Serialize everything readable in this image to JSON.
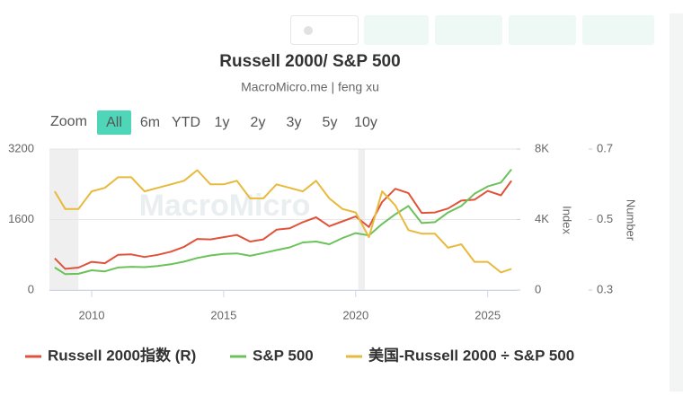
{
  "chart_data": {
    "type": "line",
    "title": "Russell 2000/ S&P 500",
    "subtitle": "MacroMicro.me | feng xu",
    "watermark": "MacroMicro",
    "range_selector": {
      "label": "Zoom",
      "buttons": [
        "All",
        "6m",
        "YTD",
        "1y",
        "2y",
        "3y",
        "5y",
        "10y"
      ],
      "selected": 0
    },
    "x": [
      2008.6,
      2009.0,
      2009.5,
      2010.0,
      2010.5,
      2011.0,
      2011.5,
      2012.0,
      2012.5,
      2013.0,
      2013.5,
      2014.0,
      2014.5,
      2015.0,
      2015.5,
      2016.0,
      2016.5,
      2017.0,
      2017.5,
      2018.0,
      2018.5,
      2019.0,
      2019.5,
      2020.0,
      2020.5,
      2021.0,
      2021.5,
      2022.0,
      2022.5,
      2023.0,
      2023.5,
      2024.0,
      2024.5,
      2025.0,
      2025.5,
      2025.9
    ],
    "xlim": [
      2008.4,
      2026.1
    ],
    "xticks": [
      2010,
      2015,
      2020,
      2025
    ],
    "bands": [
      [
        2008.4,
        2009.5
      ],
      [
        2020.1,
        2020.35
      ]
    ],
    "ylim": [
      0,
      3200
    ],
    "yticks": [
      0,
      1600,
      3200
    ],
    "y2lim": [
      0,
      8000
    ],
    "y2ticks": [
      0,
      {
        "value": 4000,
        "label": "4K"
      },
      {
        "value": 8000,
        "label": "8K"
      }
    ],
    "y2label": "Index",
    "y3lim": [
      0.3,
      0.7
    ],
    "y3ticks": [
      0.3,
      0.5,
      0.7
    ],
    "y3label": "Number",
    "grid": true,
    "series": [
      {
        "name": "Russell 2000指数 (R)",
        "color": "#e0533a",
        "axis": "y",
        "values": [
          720,
          480,
          510,
          640,
          610,
          800,
          810,
          750,
          800,
          870,
          980,
          1160,
          1150,
          1200,
          1250,
          1100,
          1150,
          1370,
          1400,
          1540,
          1650,
          1450,
          1560,
          1670,
          1430,
          2000,
          2300,
          2200,
          1750,
          1760,
          1850,
          2030,
          2050,
          2250,
          2150,
          2480
        ]
      },
      {
        "name": "S&P 500",
        "color": "#6cc25a",
        "axis": "y2",
        "values": [
          1280,
          900,
          920,
          1120,
          1060,
          1280,
          1320,
          1300,
          1360,
          1460,
          1610,
          1820,
          1960,
          2050,
          2080,
          1940,
          2100,
          2270,
          2420,
          2700,
          2750,
          2600,
          2950,
          3230,
          3100,
          3750,
          4300,
          4770,
          3800,
          3850,
          4400,
          4770,
          5460,
          5880,
          6100,
          6850
        ]
      },
      {
        "name": "美国-Russell 2000 ÷ S&P 500",
        "color": "#e8b93a",
        "axis": "y3",
        "values": [
          0.58,
          0.53,
          0.53,
          0.58,
          0.59,
          0.62,
          0.62,
          0.58,
          0.59,
          0.6,
          0.61,
          0.64,
          0.6,
          0.6,
          0.61,
          0.56,
          0.56,
          0.6,
          0.59,
          0.58,
          0.61,
          0.56,
          0.53,
          0.52,
          0.45,
          0.58,
          0.54,
          0.47,
          0.46,
          0.46,
          0.42,
          0.43,
          0.38,
          0.38,
          0.35,
          0.36
        ]
      }
    ]
  }
}
